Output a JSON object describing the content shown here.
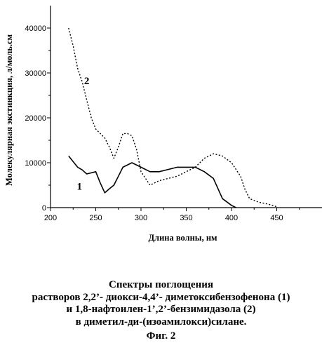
{
  "chart_data": {
    "type": "line",
    "xlabel": "Длина волны, нм",
    "ylabel": "Молекулярная экстинкция, л/моль.см",
    "xlim": [
      200,
      500
    ],
    "ylim": [
      0,
      45000
    ],
    "x_ticks": [
      200,
      250,
      300,
      350,
      400,
      450
    ],
    "y_ticks": [
      0,
      10000,
      20000,
      30000,
      40000
    ],
    "grid": false,
    "legend": "none",
    "series": [
      {
        "name": "1",
        "line_style": "solid",
        "color": "#000000",
        "label_at": [
          232,
          4000
        ],
        "points": [
          [
            220,
            11500
          ],
          [
            230,
            9000
          ],
          [
            235,
            8400
          ],
          [
            240,
            7500
          ],
          [
            250,
            8000
          ],
          [
            255,
            5500
          ],
          [
            260,
            3300
          ],
          [
            265,
            4200
          ],
          [
            270,
            5000
          ],
          [
            275,
            7000
          ],
          [
            280,
            9000
          ],
          [
            290,
            10000
          ],
          [
            300,
            9000
          ],
          [
            310,
            8000
          ],
          [
            320,
            8000
          ],
          [
            330,
            8500
          ],
          [
            340,
            9000
          ],
          [
            350,
            9000
          ],
          [
            360,
            9000
          ],
          [
            370,
            8000
          ],
          [
            380,
            6500
          ],
          [
            390,
            2000
          ],
          [
            400,
            500
          ],
          [
            405,
            0
          ]
        ]
      },
      {
        "name": "2",
        "line_style": "dotted",
        "color": "#000000",
        "label_at": [
          240,
          27500
        ],
        "points": [
          [
            220,
            40000
          ],
          [
            225,
            36000
          ],
          [
            230,
            31000
          ],
          [
            235,
            28000
          ],
          [
            240,
            24000
          ],
          [
            245,
            20000
          ],
          [
            250,
            17500
          ],
          [
            255,
            16500
          ],
          [
            260,
            15500
          ],
          [
            265,
            13500
          ],
          [
            270,
            11000
          ],
          [
            275,
            13500
          ],
          [
            280,
            16500
          ],
          [
            285,
            16500
          ],
          [
            290,
            16000
          ],
          [
            295,
            13000
          ],
          [
            300,
            8000
          ],
          [
            310,
            5000
          ],
          [
            320,
            6000
          ],
          [
            330,
            6500
          ],
          [
            340,
            7000
          ],
          [
            350,
            8000
          ],
          [
            360,
            9000
          ],
          [
            370,
            11000
          ],
          [
            380,
            12000
          ],
          [
            390,
            11500
          ],
          [
            400,
            10000
          ],
          [
            410,
            7000
          ],
          [
            415,
            4000
          ],
          [
            420,
            2000
          ],
          [
            430,
            1200
          ],
          [
            440,
            800
          ],
          [
            450,
            200
          ]
        ]
      }
    ]
  },
  "caption": {
    "line1": "Спектры поглощения",
    "line2": "растворов 2,2’- диокси-4,4’- диметоксибензофенона (1)",
    "line3": "и 1,8-нафтоилен-1’,2’-бензимидазола (2)",
    "line4": "в диметил-ди-(изоамилокси)силане.",
    "figure": "Фиг. 2"
  }
}
